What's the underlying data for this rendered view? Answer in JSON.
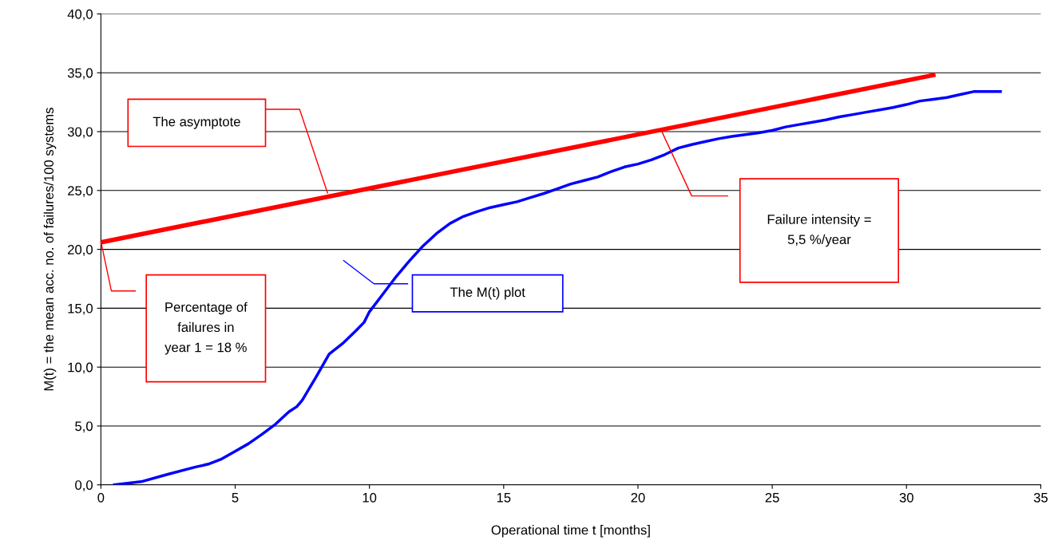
{
  "chart_data": {
    "type": "line",
    "xlabel": "Operational time t [months]",
    "ylabel": "M(t) = the mean acc. no. of failures/100 systems",
    "xlim": [
      0,
      35
    ],
    "xticks": [
      0,
      5,
      10,
      15,
      20,
      25,
      30,
      35
    ],
    "ylim": [
      0,
      40
    ],
    "yticks": [
      {
        "value": 0,
        "label": "0,0"
      },
      {
        "value": 5,
        "label": "5,0"
      },
      {
        "value": 10,
        "label": "10,0"
      },
      {
        "value": 15,
        "label": "15,0"
      },
      {
        "value": 20,
        "label": "20,0"
      },
      {
        "value": 25,
        "label": "25,0"
      },
      {
        "value": 30,
        "label": "30,0"
      },
      {
        "value": 35,
        "label": "35,0"
      },
      {
        "value": 40,
        "label": "40,0"
      }
    ],
    "grid": "y",
    "legend": false,
    "marker": "none",
    "line_style": "solid",
    "series": [
      {
        "color": "#0000ff",
        "x": [
          0.5,
          1.5,
          2.5,
          3.5,
          4,
          4.5,
          5,
          5.5,
          6,
          6.5,
          7,
          7.3,
          7.5,
          8,
          8.5,
          9,
          9.5,
          9.8,
          10,
          10.5,
          11,
          11.5,
          12,
          12.5,
          13,
          13.5,
          14,
          14.5,
          15,
          15.5,
          16,
          16.5,
          17,
          17.5,
          18,
          18.5,
          19,
          19.5,
          20,
          20.5,
          21,
          21.5,
          22,
          22.5,
          23,
          23.5,
          24,
          24.5,
          25,
          25.5,
          26,
          26.5,
          27,
          27.5,
          28,
          28.5,
          29,
          29.5,
          30,
          30.5,
          31,
          31.5,
          32,
          32.5,
          33,
          33.5
        ],
        "values": [
          0,
          0.27,
          0.9,
          1.5,
          1.76,
          2.2,
          2.85,
          3.5,
          4.3,
          5.15,
          6.2,
          6.65,
          7.2,
          9.1,
          11.1,
          12,
          13.1,
          13.8,
          14.7,
          16.2,
          17.7,
          19.05,
          20.3,
          21.35,
          22.2,
          22.8,
          23.2,
          23.55,
          23.8,
          24.05,
          24.4,
          24.75,
          25.15,
          25.55,
          25.85,
          26.15,
          26.6,
          27,
          27.25,
          27.6,
          28.05,
          28.6,
          28.9,
          29.15,
          29.4,
          29.6,
          29.75,
          29.9,
          30.1,
          30.4,
          30.6,
          30.8,
          31,
          31.25,
          31.45,
          31.65,
          31.85,
          32.05,
          32.3,
          32.6,
          32.75,
          32.9,
          33.15,
          33.4,
          33.4,
          33.4
        ]
      },
      {
        "color": "#ff0000",
        "x": [
          0,
          31
        ],
        "values": [
          20.6,
          34.8
        ]
      }
    ],
    "annotations": [
      "The asymptote",
      "Failure intensity =\n5,5 %/year",
      "Percentage of\nfailures in\nyear 1 = 18 %",
      "The M(t) plot"
    ]
  }
}
